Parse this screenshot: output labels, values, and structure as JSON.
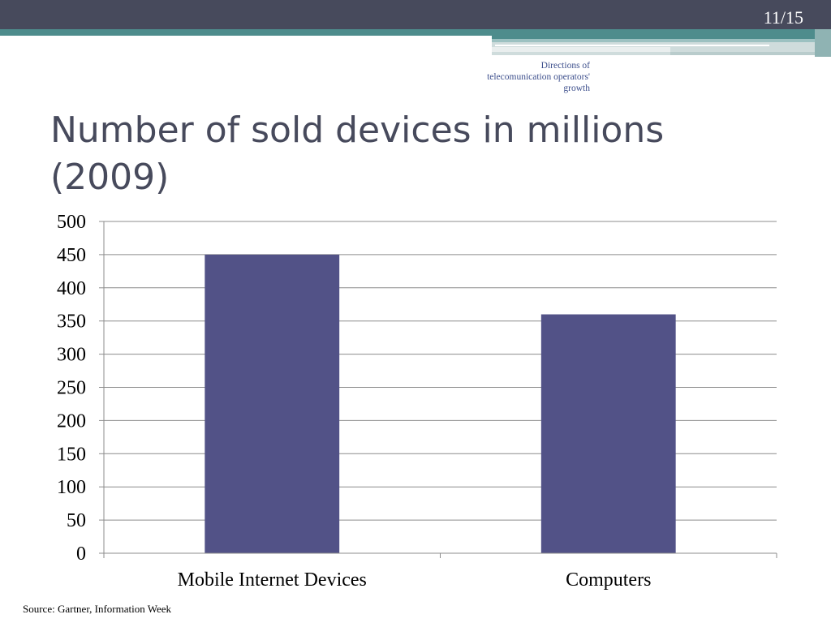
{
  "slide": {
    "page_number": "11/15",
    "section_label": "Directions of telecomunication operators' growth",
    "title": "Number of sold devices in millions (2009)",
    "source": "Source: Gartner, Information Week"
  },
  "colors": {
    "bar": "#525287",
    "gridline": "#8c8c8c",
    "header_dark": "#474a5c",
    "header_teal": "#4e8c8c",
    "title_text": "#474a5c"
  },
  "chart_data": {
    "type": "bar",
    "categories": [
      "Mobile Internet Devices",
      "Computers"
    ],
    "values": [
      450,
      360
    ],
    "title": "",
    "xlabel": "",
    "ylabel": "",
    "ylim": [
      0,
      500
    ],
    "yticks": [
      0,
      50,
      100,
      150,
      200,
      250,
      300,
      350,
      400,
      450,
      500
    ],
    "grid": true,
    "legend": "none"
  }
}
